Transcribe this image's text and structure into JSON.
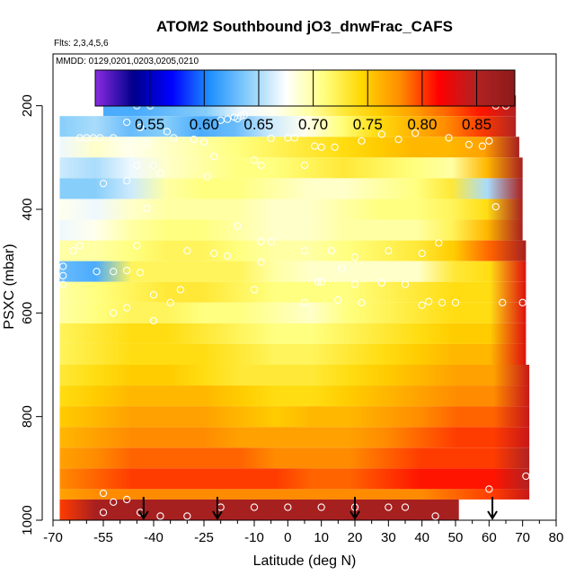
{
  "chart_data": {
    "type": "heatmap",
    "title": "ATOM2 Southbound jO3_dnwFrac_CAFS",
    "flights_label": "Flts: 2,3,4,5,6",
    "dates_label": "MMDD: 0129,0201,0203,0205,0210",
    "xlabel": "Latitude (deg N)",
    "ylabel": "PSXC (mbar)",
    "xlim": [
      -70,
      80
    ],
    "ylim": [
      1000,
      100
    ],
    "x_ticks": [
      -70,
      -55,
      -40,
      -25,
      -10,
      0,
      10,
      20,
      30,
      40,
      50,
      60,
      70,
      80
    ],
    "x_tick_labels": [
      "-70",
      "-55",
      "-40",
      "-25",
      "-10",
      "0",
      "10",
      "20",
      "30",
      "40",
      "50",
      "60",
      "70",
      "80"
    ],
    "x_minor_ticks": [
      -65,
      -60,
      -50,
      -45,
      -35,
      -30,
      -20,
      -15,
      -5,
      5,
      15,
      25,
      35,
      45,
      55,
      65,
      75
    ],
    "y_ticks": [
      200,
      400,
      600,
      800,
      1000
    ],
    "y_tick_labels": [
      "200",
      "400",
      "600",
      "800",
      "1000"
    ],
    "colorbar": {
      "min": 0.5,
      "max": 0.885,
      "ticks": [
        0.55,
        0.6,
        0.65,
        0.7,
        0.75,
        0.8,
        0.85
      ],
      "tick_labels": [
        "0.55",
        "0.60",
        "0.65",
        "0.70",
        "0.75",
        "0.80",
        "0.85"
      ],
      "colors": [
        "#8a2be2",
        "#00008b",
        "#0000ff",
        "#1e90ff",
        "#87cefa",
        "#ffffff",
        "#ffff80",
        "#ffd700",
        "#ff8c00",
        "#ff0000",
        "#b22222",
        "#8b1a1a"
      ]
    },
    "layers": [
      {
        "p_top": 180,
        "p_bot": 220,
        "x_start": -55,
        "x_end": 68,
        "values": [
          0.62,
          0.62,
          0.63,
          0.64,
          0.67,
          0.68,
          0.7,
          0.73,
          0.75,
          0.77,
          0.79,
          0.81,
          0.85
        ]
      },
      {
        "p_top": 220,
        "p_bot": 260,
        "x_start": -68,
        "x_end": 68,
        "values": [
          0.64,
          0.65,
          0.63,
          0.64,
          0.62,
          0.63,
          0.66,
          0.68,
          0.71,
          0.74,
          0.76,
          0.78,
          0.8,
          0.85
        ]
      },
      {
        "p_top": 260,
        "p_bot": 300,
        "x_start": -68,
        "x_end": 69,
        "values": [
          0.67,
          0.69,
          0.68,
          0.69,
          0.7,
          0.71,
          0.72,
          0.73,
          0.74,
          0.75,
          0.76,
          0.76,
          0.77,
          0.86
        ]
      },
      {
        "p_top": 300,
        "p_bot": 340,
        "x_start": -68,
        "x_end": 70,
        "values": [
          0.66,
          0.65,
          0.67,
          0.69,
          0.7,
          0.71,
          0.71,
          0.72,
          0.73,
          0.72,
          0.71,
          0.7,
          0.76,
          0.86
        ]
      },
      {
        "p_top": 340,
        "p_bot": 380,
        "x_start": -68,
        "x_end": 70,
        "values": [
          0.64,
          0.64,
          0.66,
          0.7,
          0.71,
          0.71,
          0.7,
          0.69,
          0.69,
          0.7,
          0.71,
          0.73,
          0.65,
          0.86
        ]
      },
      {
        "p_top": 380,
        "p_bot": 420,
        "x_start": -68,
        "x_end": 70,
        "values": [
          0.68,
          0.67,
          0.69,
          0.7,
          0.7,
          0.7,
          0.69,
          0.69,
          0.7,
          0.71,
          0.71,
          0.72,
          0.74,
          0.86
        ]
      },
      {
        "p_top": 420,
        "p_bot": 460,
        "x_start": -68,
        "x_end": 70,
        "values": [
          0.67,
          0.68,
          0.7,
          0.71,
          0.71,
          0.7,
          0.69,
          0.69,
          0.7,
          0.7,
          0.7,
          0.72,
          0.76,
          0.86
        ]
      },
      {
        "p_top": 460,
        "p_bot": 500,
        "x_start": -68,
        "x_end": 71,
        "values": [
          0.7,
          0.7,
          0.71,
          0.72,
          0.72,
          0.71,
          0.7,
          0.7,
          0.71,
          0.72,
          0.73,
          0.75,
          0.79,
          0.86
        ]
      },
      {
        "p_top": 500,
        "p_bot": 540,
        "x_start": -68,
        "x_end": 71,
        "values": [
          0.63,
          0.62,
          0.72,
          0.72,
          0.72,
          0.72,
          0.7,
          0.69,
          0.69,
          0.69,
          0.69,
          0.73,
          0.74,
          0.83
        ]
      },
      {
        "p_top": 540,
        "p_bot": 580,
        "x_start": -68,
        "x_end": 71,
        "values": [
          0.7,
          0.71,
          0.72,
          0.73,
          0.73,
          0.72,
          0.71,
          0.71,
          0.71,
          0.72,
          0.73,
          0.74,
          0.74,
          0.83
        ]
      },
      {
        "p_top": 580,
        "p_bot": 620,
        "x_start": -68,
        "x_end": 71,
        "values": [
          0.7,
          0.71,
          0.72,
          0.72,
          0.71,
          0.71,
          0.7,
          0.69,
          0.71,
          0.72,
          0.73,
          0.74,
          0.74,
          0.83
        ]
      },
      {
        "p_top": 620,
        "p_bot": 660,
        "x_start": -68,
        "x_end": 71,
        "values": [
          0.72,
          0.73,
          0.74,
          0.74,
          0.73,
          0.72,
          0.71,
          0.71,
          0.72,
          0.73,
          0.74,
          0.75,
          0.75,
          0.83
        ]
      },
      {
        "p_top": 660,
        "p_bot": 700,
        "x_start": -68,
        "x_end": 71,
        "values": [
          0.72,
          0.73,
          0.74,
          0.74,
          0.74,
          0.73,
          0.72,
          0.72,
          0.73,
          0.74,
          0.75,
          0.76,
          0.76,
          0.83
        ]
      },
      {
        "p_top": 700,
        "p_bot": 740,
        "x_start": -68,
        "x_end": 72,
        "values": [
          0.73,
          0.74,
          0.75,
          0.75,
          0.74,
          0.73,
          0.73,
          0.73,
          0.74,
          0.75,
          0.76,
          0.77,
          0.77,
          0.84
        ]
      },
      {
        "p_top": 740,
        "p_bot": 780,
        "x_start": -68,
        "x_end": 72,
        "values": [
          0.74,
          0.75,
          0.76,
          0.76,
          0.76,
          0.75,
          0.74,
          0.74,
          0.75,
          0.76,
          0.77,
          0.78,
          0.78,
          0.84
        ]
      },
      {
        "p_top": 780,
        "p_bot": 820,
        "x_start": -68,
        "x_end": 72,
        "values": [
          0.75,
          0.76,
          0.77,
          0.77,
          0.77,
          0.76,
          0.75,
          0.76,
          0.76,
          0.77,
          0.78,
          0.79,
          0.79,
          0.84
        ]
      },
      {
        "p_top": 820,
        "p_bot": 860,
        "x_start": -68,
        "x_end": 72,
        "values": [
          0.76,
          0.77,
          0.78,
          0.78,
          0.78,
          0.77,
          0.77,
          0.77,
          0.77,
          0.78,
          0.79,
          0.8,
          0.8,
          0.84
        ]
      },
      {
        "p_top": 860,
        "p_bot": 900,
        "x_start": -68,
        "x_end": 72,
        "values": [
          0.77,
          0.78,
          0.79,
          0.79,
          0.79,
          0.79,
          0.78,
          0.78,
          0.78,
          0.79,
          0.8,
          0.8,
          0.8,
          0.85
        ]
      },
      {
        "p_top": 900,
        "p_bot": 940,
        "x_start": -68,
        "x_end": 72,
        "values": [
          0.78,
          0.79,
          0.8,
          0.8,
          0.8,
          0.8,
          0.8,
          0.79,
          0.79,
          0.8,
          0.81,
          0.81,
          0.81,
          0.85
        ]
      },
      {
        "p_top": 940,
        "p_bot": 960,
        "x_start": -68,
        "x_end": 72,
        "values": [
          0.77,
          0.78,
          0.78,
          0.78,
          0.78,
          0.78,
          0.78,
          0.78,
          0.78,
          0.78,
          0.78,
          0.79,
          0.8,
          0.84
        ]
      },
      {
        "p_top": 960,
        "p_bot": 1015,
        "x_start": -68,
        "x_end": 51,
        "values": [
          0.8,
          0.86,
          0.86,
          0.86,
          0.86,
          0.86,
          0.86,
          0.86,
          0.86,
          0.86,
          0.86,
          0.86
        ]
      }
    ],
    "sample_points": [
      [
        -41,
        200
      ],
      [
        -45,
        200
      ],
      [
        -36,
        250
      ],
      [
        -34,
        262
      ],
      [
        -20,
        228
      ],
      [
        -18,
        226
      ],
      [
        -16,
        222
      ],
      [
        -15,
        225
      ],
      [
        -14,
        220
      ],
      [
        -13,
        218
      ],
      [
        -5,
        263
      ],
      [
        0,
        262
      ],
      [
        2,
        262
      ],
      [
        8,
        278
      ],
      [
        10,
        280
      ],
      [
        14,
        280
      ],
      [
        22,
        268
      ],
      [
        28,
        255
      ],
      [
        33,
        265
      ],
      [
        38,
        253
      ],
      [
        48,
        262
      ],
      [
        54,
        275
      ],
      [
        58,
        278
      ],
      [
        60,
        268
      ],
      [
        62,
        395
      ],
      [
        62,
        200
      ],
      [
        65,
        200
      ],
      [
        -62,
        262
      ],
      [
        -60,
        262
      ],
      [
        -58,
        262
      ],
      [
        -56,
        262
      ],
      [
        -52,
        262
      ],
      [
        -48,
        232
      ],
      [
        -44,
        242
      ],
      [
        -42,
        272
      ],
      [
        -28,
        265
      ],
      [
        -25,
        270
      ],
      [
        -22,
        298
      ],
      [
        -45,
        315
      ],
      [
        -40,
        315
      ],
      [
        -38,
        330
      ],
      [
        -48,
        345
      ],
      [
        -55,
        350
      ],
      [
        -10,
        305
      ],
      [
        -8,
        315
      ],
      [
        5,
        315
      ],
      [
        -24,
        337
      ],
      [
        -42,
        398
      ],
      [
        -15,
        432
      ],
      [
        -8,
        462
      ],
      [
        -5,
        463
      ],
      [
        -45,
        470
      ],
      [
        -48,
        518
      ],
      [
        -44,
        522
      ],
      [
        -30,
        480
      ],
      [
        -22,
        485
      ],
      [
        -18,
        490
      ],
      [
        -8,
        502
      ],
      [
        20,
        492
      ],
      [
        30,
        480
      ],
      [
        40,
        485
      ],
      [
        45,
        465
      ],
      [
        -40,
        565
      ],
      [
        -32,
        555
      ],
      [
        -10,
        555
      ],
      [
        10,
        540
      ],
      [
        20,
        545
      ],
      [
        28,
        542
      ],
      [
        35,
        545
      ],
      [
        42,
        578
      ],
      [
        46,
        580
      ],
      [
        -52,
        600
      ],
      [
        -48,
        590
      ],
      [
        -40,
        615
      ],
      [
        -35,
        580
      ],
      [
        5,
        580
      ],
      [
        15,
        575
      ],
      [
        22,
        580
      ],
      [
        40,
        585
      ],
      [
        50,
        580
      ],
      [
        64,
        580
      ],
      [
        70,
        580
      ],
      [
        -55,
        948
      ],
      [
        -48,
        960
      ],
      [
        -52,
        965
      ],
      [
        -20,
        975
      ],
      [
        -10,
        975
      ],
      [
        0,
        975
      ],
      [
        10,
        975
      ],
      [
        20,
        975
      ],
      [
        30,
        975
      ],
      [
        35,
        975
      ],
      [
        44,
        992
      ],
      [
        -55,
        985
      ],
      [
        -44,
        985
      ],
      [
        -38,
        992
      ],
      [
        -30,
        992
      ],
      [
        60,
        940
      ],
      [
        71,
        915
      ],
      [
        -67,
        510
      ],
      [
        -67,
        528
      ],
      [
        -67,
        545
      ],
      [
        -64,
        480
      ],
      [
        -62,
        470
      ],
      [
        -57,
        520
      ],
      [
        -52,
        520
      ],
      [
        13,
        480
      ],
      [
        16,
        515
      ],
      [
        5,
        480
      ],
      [
        9,
        540
      ]
    ],
    "arrows_x": [
      -43,
      -21,
      20,
      61
    ]
  }
}
